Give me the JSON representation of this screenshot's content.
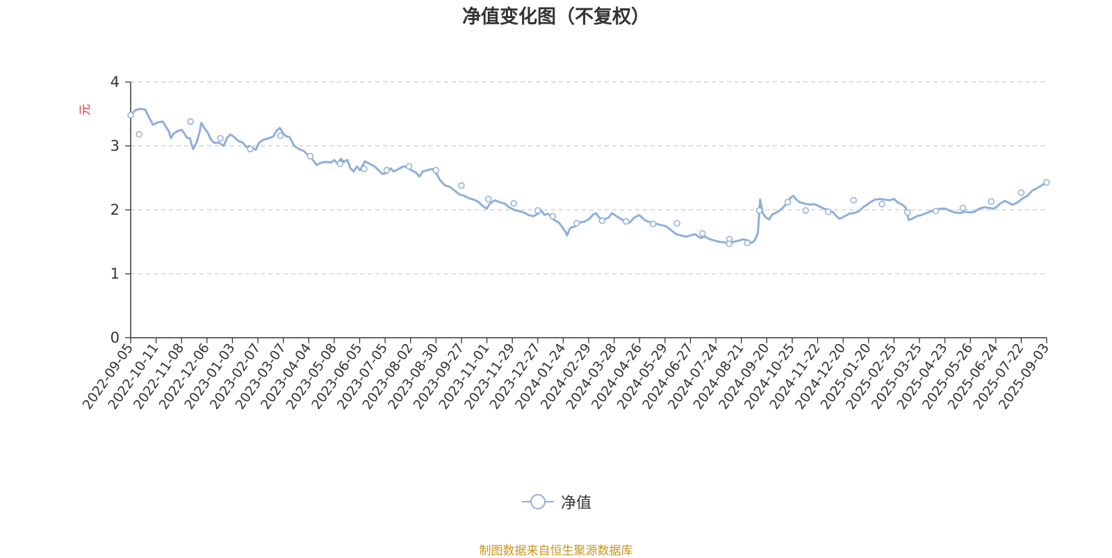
{
  "chart_data": {
    "type": "line",
    "title": "净值变化图（不复权）",
    "ylabel": "元",
    "xlabel": "",
    "ylim": [
      0,
      4
    ],
    "yticks": [
      0,
      1,
      2,
      3,
      4
    ],
    "grid": true,
    "legend_position": "bottom-center",
    "source_note": "制图数据来自恒生聚源数据库",
    "colors": {
      "line": "#8eaedc",
      "grid": "#c8c8c8",
      "axis": "#333333",
      "ylabel": "#e8323c",
      "source": "#c9941e"
    },
    "categories": [
      "2022-09-05",
      "2022-10-11",
      "2022-11-08",
      "2022-12-06",
      "2023-01-03",
      "2023-02-07",
      "2023-03-07",
      "2023-04-04",
      "2023-05-08",
      "2023-06-05",
      "2023-07-05",
      "2023-08-02",
      "2023-08-30",
      "2023-09-27",
      "2023-11-01",
      "2023-11-29",
      "2023-12-27",
      "2024-01-24",
      "2024-02-29",
      "2024-03-28",
      "2024-04-26",
      "2024-05-29",
      "2024-06-27",
      "2024-07-24",
      "2024-08-21",
      "2024-09-20",
      "2024-10-25",
      "2024-11-22",
      "2024-12-20",
      "2025-01-20",
      "2025-02-25",
      "2025-03-25",
      "2025-04-23",
      "2025-05-26",
      "2025-06-24",
      "2025-07-22",
      "2025-09-03"
    ],
    "series": [
      {
        "name": "净值",
        "points": [
          [
            0,
            3.48
          ],
          [
            0.15,
            3.56
          ],
          [
            0.3,
            3.58
          ],
          [
            0.45,
            3.57
          ],
          [
            0.6,
            3.42
          ],
          [
            0.7,
            3.33
          ],
          [
            0.85,
            3.37
          ],
          [
            1.0,
            3.38
          ],
          [
            1.1,
            3.3
          ],
          [
            1.2,
            3.22
          ],
          [
            1.25,
            3.12
          ],
          [
            1.35,
            3.2
          ],
          [
            1.5,
            3.24
          ],
          [
            1.6,
            3.25
          ],
          [
            1.75,
            3.13
          ],
          [
            1.85,
            3.12
          ],
          [
            1.9,
            3.02
          ],
          [
            1.95,
            2.95
          ],
          [
            2.05,
            3.05
          ],
          [
            2.15,
            3.22
          ],
          [
            2.2,
            3.36
          ],
          [
            2.3,
            3.28
          ],
          [
            2.4,
            3.21
          ],
          [
            2.5,
            3.1
          ],
          [
            2.6,
            3.05
          ],
          [
            2.75,
            3.05
          ],
          [
            2.9,
            3.0
          ],
          [
            3.0,
            3.12
          ],
          [
            3.1,
            3.18
          ],
          [
            3.2,
            3.15
          ],
          [
            3.35,
            3.08
          ],
          [
            3.5,
            3.05
          ],
          [
            3.6,
            2.98
          ],
          [
            3.7,
            3.0
          ],
          [
            3.8,
            2.97
          ],
          [
            3.9,
            2.94
          ],
          [
            4.0,
            3.05
          ],
          [
            4.15,
            3.1
          ],
          [
            4.3,
            3.12
          ],
          [
            4.45,
            3.15
          ],
          [
            4.55,
            3.24
          ],
          [
            4.65,
            3.28
          ],
          [
            4.75,
            3.2
          ],
          [
            4.85,
            3.15
          ],
          [
            4.95,
            3.14
          ],
          [
            5.1,
            3.0
          ],
          [
            5.25,
            2.95
          ],
          [
            5.4,
            2.92
          ],
          [
            5.5,
            2.87
          ],
          [
            5.65,
            2.8
          ],
          [
            5.8,
            2.7
          ],
          [
            5.95,
            2.74
          ],
          [
            6.1,
            2.75
          ],
          [
            6.25,
            2.74
          ],
          [
            6.35,
            2.78
          ],
          [
            6.45,
            2.72
          ],
          [
            6.55,
            2.8
          ],
          [
            6.65,
            2.75
          ],
          [
            6.75,
            2.78
          ],
          [
            6.85,
            2.65
          ],
          [
            6.95,
            2.6
          ],
          [
            7.05,
            2.68
          ],
          [
            7.15,
            2.62
          ],
          [
            7.3,
            2.76
          ],
          [
            7.45,
            2.72
          ],
          [
            7.6,
            2.68
          ],
          [
            7.75,
            2.61
          ],
          [
            7.85,
            2.56
          ],
          [
            8.0,
            2.58
          ],
          [
            8.1,
            2.65
          ],
          [
            8.2,
            2.6
          ],
          [
            8.35,
            2.64
          ],
          [
            8.5,
            2.68
          ],
          [
            8.6,
            2.67
          ],
          [
            8.75,
            2.62
          ],
          [
            8.9,
            2.58
          ],
          [
            9.0,
            2.52
          ],
          [
            9.1,
            2.6
          ],
          [
            9.25,
            2.62
          ],
          [
            9.4,
            2.64
          ],
          [
            9.55,
            2.55
          ],
          [
            9.65,
            2.46
          ],
          [
            9.8,
            2.38
          ],
          [
            9.95,
            2.36
          ],
          [
            10.1,
            2.3
          ],
          [
            10.25,
            2.24
          ],
          [
            10.4,
            2.22
          ],
          [
            10.55,
            2.18
          ],
          [
            10.7,
            2.16
          ],
          [
            10.85,
            2.12
          ],
          [
            11.0,
            2.05
          ],
          [
            11.1,
            2.02
          ],
          [
            11.2,
            2.1
          ],
          [
            11.35,
            2.15
          ],
          [
            11.5,
            2.12
          ],
          [
            11.65,
            2.1
          ],
          [
            11.8,
            2.04
          ],
          [
            11.95,
            2.0
          ],
          [
            12.1,
            1.98
          ],
          [
            12.25,
            1.96
          ],
          [
            12.4,
            1.92
          ],
          [
            12.55,
            1.9
          ],
          [
            12.7,
            1.94
          ],
          [
            12.8,
            1.99
          ],
          [
            12.9,
            1.92
          ],
          [
            13.0,
            1.94
          ],
          [
            13.1,
            1.9
          ],
          [
            13.2,
            1.84
          ],
          [
            13.35,
            1.8
          ],
          [
            13.45,
            1.73
          ],
          [
            13.55,
            1.66
          ],
          [
            13.6,
            1.6
          ],
          [
            13.7,
            1.72
          ],
          [
            13.85,
            1.74
          ],
          [
            14.0,
            1.8
          ],
          [
            14.15,
            1.82
          ],
          [
            14.3,
            1.86
          ],
          [
            14.4,
            1.92
          ],
          [
            14.5,
            1.95
          ],
          [
            14.6,
            1.88
          ],
          [
            14.75,
            1.85
          ],
          [
            14.9,
            1.88
          ],
          [
            15.0,
            1.95
          ],
          [
            15.15,
            1.9
          ],
          [
            15.3,
            1.85
          ],
          [
            15.45,
            1.82
          ],
          [
            15.55,
            1.8
          ],
          [
            15.7,
            1.88
          ],
          [
            15.85,
            1.92
          ],
          [
            16.0,
            1.85
          ],
          [
            16.1,
            1.82
          ],
          [
            16.25,
            1.8
          ],
          [
            16.4,
            1.78
          ],
          [
            16.55,
            1.76
          ],
          [
            16.7,
            1.74
          ],
          [
            16.85,
            1.68
          ],
          [
            17.0,
            1.62
          ],
          [
            17.15,
            1.6
          ],
          [
            17.3,
            1.58
          ],
          [
            17.45,
            1.6
          ],
          [
            17.6,
            1.62
          ],
          [
            17.75,
            1.56
          ],
          [
            17.9,
            1.58
          ],
          [
            18.05,
            1.54
          ],
          [
            18.2,
            1.52
          ],
          [
            18.35,
            1.5
          ],
          [
            18.5,
            1.49
          ],
          [
            18.65,
            1.48
          ],
          [
            18.8,
            1.5
          ],
          [
            18.95,
            1.52
          ],
          [
            19.1,
            1.54
          ],
          [
            19.25,
            1.52
          ],
          [
            19.35,
            1.48
          ],
          [
            19.45,
            1.52
          ],
          [
            19.55,
            1.64
          ],
          [
            19.62,
            2.16
          ],
          [
            19.7,
            1.95
          ],
          [
            19.8,
            1.88
          ],
          [
            19.9,
            1.85
          ],
          [
            20.0,
            1.93
          ],
          [
            20.1,
            1.95
          ],
          [
            20.2,
            1.98
          ],
          [
            20.3,
            2.02
          ],
          [
            20.45,
            2.1
          ],
          [
            20.55,
            2.18
          ],
          [
            20.65,
            2.22
          ],
          [
            20.75,
            2.16
          ],
          [
            20.85,
            2.12
          ],
          [
            21.0,
            2.1
          ],
          [
            21.15,
            2.08
          ],
          [
            21.3,
            2.09
          ],
          [
            21.45,
            2.06
          ],
          [
            21.6,
            2.02
          ],
          [
            21.75,
            2.0
          ],
          [
            21.9,
            1.96
          ],
          [
            22.0,
            1.9
          ],
          [
            22.1,
            1.86
          ],
          [
            22.25,
            1.9
          ],
          [
            22.4,
            1.94
          ],
          [
            22.55,
            1.95
          ],
          [
            22.7,
            1.98
          ],
          [
            22.85,
            2.05
          ],
          [
            22.95,
            2.08
          ],
          [
            23.05,
            2.12
          ],
          [
            23.2,
            2.16
          ],
          [
            23.35,
            2.17
          ],
          [
            23.5,
            2.16
          ],
          [
            23.65,
            2.15
          ],
          [
            23.8,
            2.17
          ],
          [
            23.9,
            2.12
          ],
          [
            24.05,
            2.08
          ],
          [
            24.15,
            2.04
          ],
          [
            24.25,
            1.84
          ],
          [
            24.35,
            1.86
          ],
          [
            24.5,
            1.9
          ],
          [
            24.65,
            1.92
          ],
          [
            24.8,
            1.95
          ],
          [
            24.95,
            1.98
          ],
          [
            25.1,
            2.0
          ],
          [
            25.25,
            2.02
          ],
          [
            25.4,
            2.02
          ],
          [
            25.55,
            1.98
          ],
          [
            25.7,
            1.96
          ],
          [
            25.85,
            1.95
          ],
          [
            26.0,
            1.97
          ],
          [
            26.15,
            1.96
          ],
          [
            26.3,
            1.97
          ],
          [
            26.45,
            2.02
          ],
          [
            26.6,
            2.04
          ],
          [
            26.75,
            2.03
          ],
          [
            26.9,
            2.02
          ],
          [
            27.0,
            2.05
          ],
          [
            27.1,
            2.1
          ],
          [
            27.25,
            2.14
          ],
          [
            27.4,
            2.1
          ],
          [
            27.5,
            2.08
          ],
          [
            27.65,
            2.12
          ],
          [
            27.8,
            2.18
          ],
          [
            27.95,
            2.22
          ],
          [
            28.1,
            2.3
          ],
          [
            28.25,
            2.34
          ],
          [
            28.35,
            2.37
          ],
          [
            28.45,
            2.4
          ],
          [
            28.55,
            2.42
          ]
        ],
        "markers": [
          [
            0,
            3.48
          ],
          [
            0.28,
            3.18
          ],
          [
            2.0,
            3.38
          ],
          [
            3.0,
            3.12
          ],
          [
            4.0,
            2.95
          ],
          [
            5.0,
            3.16
          ],
          [
            6.0,
            2.84
          ],
          [
            7.0,
            2.72
          ],
          [
            7.8,
            2.64
          ],
          [
            8.55,
            2.62
          ],
          [
            9.3,
            2.68
          ],
          [
            10.2,
            2.62
          ],
          [
            11.05,
            2.38
          ],
          [
            11.95,
            2.17
          ],
          [
            12.8,
            2.1
          ],
          [
            13.6,
            1.99
          ],
          [
            14.1,
            1.9
          ],
          [
            14.9,
            1.79
          ],
          [
            15.75,
            1.83
          ],
          [
            16.55,
            1.82
          ],
          [
            17.45,
            1.78
          ],
          [
            18.25,
            1.79
          ],
          [
            19.1,
            1.63
          ],
          [
            20.0,
            1.54
          ],
          [
            20.0,
            1.47
          ],
          [
            20.6,
            1.48
          ],
          [
            21.0,
            1.99
          ],
          [
            21.95,
            2.12
          ],
          [
            22.55,
            1.99
          ],
          [
            23.3,
            1.97
          ],
          [
            24.15,
            2.15
          ],
          [
            25.1,
            2.09
          ],
          [
            25.95,
            1.96
          ],
          [
            26.9,
            1.98
          ],
          [
            27.8,
            2.03
          ],
          [
            28.75,
            2.13
          ],
          [
            29.75,
            2.27
          ],
          [
            30.6,
            2.43
          ]
        ]
      }
    ]
  },
  "legend": {
    "label": "净值"
  }
}
